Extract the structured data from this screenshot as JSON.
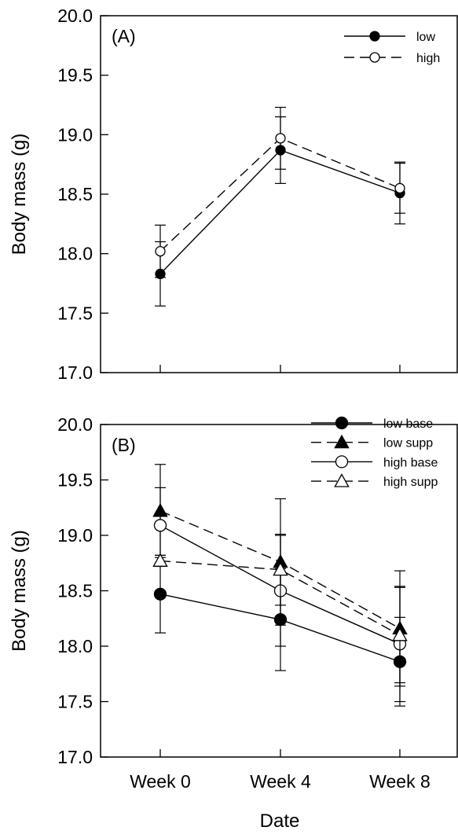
{
  "chart_data": [
    {
      "type": "line",
      "panel_label": "(A)",
      "categories": [
        "Week 0",
        "Week 4",
        "Week 8"
      ],
      "ylabel": "Body mass (g)",
      "ylim": [
        17.0,
        20.0
      ],
      "yticks": [
        "17.0",
        "17.5",
        "18.0",
        "18.5",
        "19.0",
        "19.5",
        "20.0"
      ],
      "grid": false,
      "legend_position": "top-right",
      "series": [
        {
          "name": "low",
          "marker": "filled-circle",
          "line": "solid",
          "values": [
            17.83,
            18.87,
            18.51
          ],
          "error": [
            0.27,
            0.28,
            0.26
          ]
        },
        {
          "name": "high",
          "marker": "open-circle",
          "line": "dashed",
          "values": [
            18.02,
            18.97,
            18.55
          ],
          "error": [
            0.22,
            0.26,
            0.21
          ]
        }
      ]
    },
    {
      "type": "line",
      "panel_label": "(B)",
      "categories": [
        "Week 0",
        "Week 4",
        "Week 8"
      ],
      "xlabel": "Date",
      "ylabel": "Body mass (g)",
      "ylim": [
        17.0,
        20.0
      ],
      "yticks": [
        "17.0",
        "17.5",
        "18.0",
        "18.5",
        "19.0",
        "19.5",
        "20.0"
      ],
      "grid": false,
      "legend_position": "top-right",
      "series": [
        {
          "name": "low base",
          "marker": "filled-circle",
          "line": "solid",
          "values": [
            18.47,
            18.24,
            17.86
          ],
          "error": [
            0.35,
            0.46,
            0.4
          ]
        },
        {
          "name": "low supp",
          "marker": "filled-triangle",
          "line": "dashed",
          "values": [
            19.22,
            18.76,
            18.16
          ],
          "error": [
            0.42,
            0.57,
            0.52
          ]
        },
        {
          "name": "high base",
          "marker": "open-circle",
          "line": "solid",
          "values": [
            19.09,
            18.5,
            18.02
          ],
          "error": [
            0.34,
            0.5,
            0.52
          ]
        },
        {
          "name": "high supp",
          "marker": "open-triangle",
          "line": "dashed",
          "values": [
            18.77,
            18.69,
            18.1
          ],
          "error": [
            0.05,
            0.32,
            0.43
          ]
        }
      ]
    }
  ]
}
